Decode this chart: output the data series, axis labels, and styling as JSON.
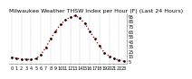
{
  "title": "Milwaukee Weather THSW Index per Hour (F) (Last 24 Hours)",
  "x": [
    0,
    1,
    2,
    3,
    4,
    5,
    6,
    7,
    8,
    9,
    10,
    11,
    12,
    13,
    14,
    15,
    16,
    17,
    18,
    19,
    20,
    21,
    22,
    23
  ],
  "y": [
    13,
    11,
    9,
    9,
    8,
    10,
    18,
    32,
    50,
    65,
    78,
    87,
    93,
    96,
    91,
    80,
    65,
    50,
    35,
    22,
    15,
    10,
    7,
    5
  ],
  "ylim": [
    0,
    100
  ],
  "xlim": [
    -0.5,
    23.5
  ],
  "yticks": [
    5,
    15,
    25,
    35,
    45,
    55,
    65,
    75,
    85,
    95
  ],
  "ytick_labels": [
    "5",
    "15",
    "25",
    "35",
    "45",
    "55",
    "65",
    "75",
    "85",
    "95"
  ],
  "xtick_positions": [
    0,
    1,
    2,
    3,
    4,
    5,
    6,
    7,
    8,
    9,
    10,
    11,
    12,
    13,
    14,
    15,
    16,
    17,
    18,
    19,
    20,
    21,
    22,
    23
  ],
  "xtick_labels": [
    "0",
    "1",
    "2",
    "3",
    "4",
    "5",
    "6",
    "7",
    "8",
    "9",
    "10",
    "11",
    "12",
    "13",
    "14",
    "15",
    "16",
    "17",
    "18",
    "19",
    "20",
    "21",
    "22",
    "23"
  ],
  "line_color": "#dd0000",
  "marker_color": "#000000",
  "bg_color": "#ffffff",
  "grid_color": "#c0c0c0",
  "title_color": "#000000",
  "title_fontsize": 4.5,
  "tick_fontsize": 3.5,
  "vgrid_positions": [
    0,
    2,
    4,
    6,
    8,
    10,
    12,
    14,
    16,
    18,
    20,
    22
  ]
}
